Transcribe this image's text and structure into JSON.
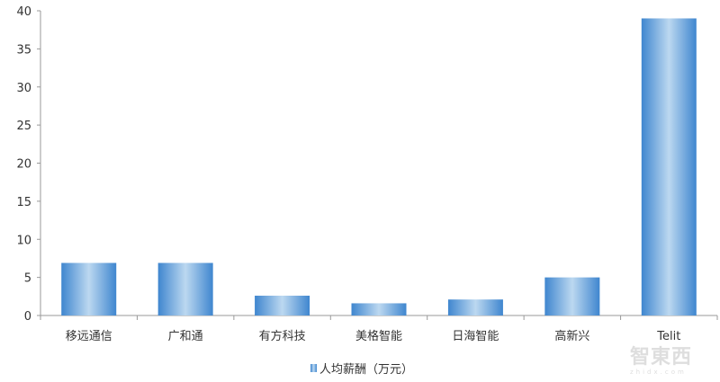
{
  "chart_data": {
    "type": "bar",
    "categories": [
      "移远通信",
      "广和通",
      "有方科技",
      "美格智能",
      "日海智能",
      "高新兴",
      "Telit"
    ],
    "series": [
      {
        "name": "人均薪酬（万元）",
        "values": [
          6.9,
          6.9,
          2.6,
          1.6,
          2.1,
          5.0,
          39.0
        ]
      }
    ],
    "ylim": [
      0,
      40
    ],
    "yticks": [
      "0",
      "5",
      "10",
      "15",
      "20",
      "25",
      "30",
      "35",
      "40"
    ],
    "grid": false,
    "legend": "bottom",
    "colors": {
      "bar_edge": "#3f86cf",
      "bar_center": "#bcd8f0"
    }
  },
  "watermark": {
    "text": "智东西",
    "sub": "zhidx.com"
  }
}
